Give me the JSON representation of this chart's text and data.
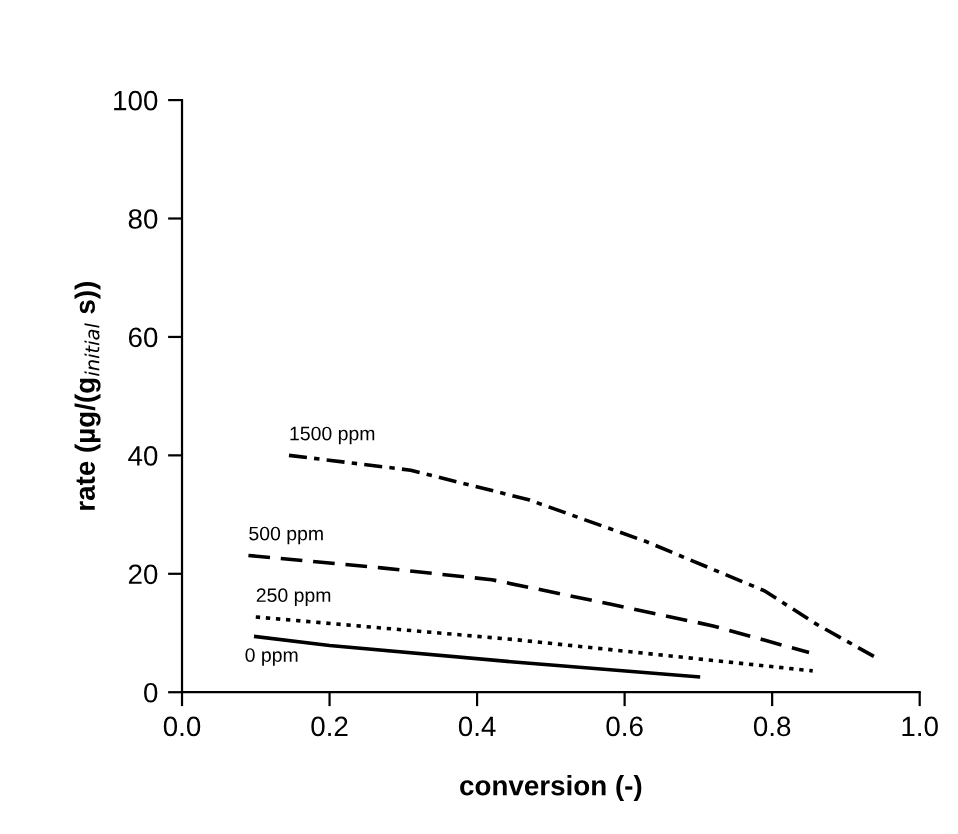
{
  "chart_data": {
    "type": "line",
    "xlabel": "conversion (-)",
    "ylabel": "rate (µg/(g$_{initial}$ s))",
    "xlim": [
      0,
      1
    ],
    "ylim": [
      0,
      100
    ],
    "xticks": [
      {
        "value": 0,
        "label": "0.0"
      },
      {
        "value": 0.2,
        "label": "0.2"
      },
      {
        "value": 0.4,
        "label": "0.4"
      },
      {
        "value": 0.6,
        "label": "0.6"
      },
      {
        "value": 0.8,
        "label": "0.8"
      },
      {
        "value": 1,
        "label": "1.0"
      }
    ],
    "yticks": [
      0,
      20,
      40,
      60,
      80,
      100
    ],
    "grid": false,
    "legend": false,
    "marker": "none",
    "series": [
      {
        "name": "0 ppm",
        "color": "#000000",
        "line_style": "solid",
        "x": [
          0.1,
          0.2,
          0.45,
          0.7
        ],
        "values": [
          9.4,
          7.9,
          5.1,
          2.6
        ]
      },
      {
        "name": "250 ppm",
        "color": "#000000",
        "line_style": "dotted",
        "x": [
          0.1,
          0.45,
          0.855
        ],
        "values": [
          12.7,
          8.9,
          3.6
        ]
      },
      {
        "name": "500 ppm",
        "color": "#000000",
        "line_style": "dashed",
        "x": [
          0.09,
          0.27,
          0.42,
          0.58,
          0.72,
          0.85
        ],
        "values": [
          23.1,
          21,
          19,
          14.9,
          11.2,
          6.7
        ]
      },
      {
        "name": "1500 ppm",
        "color": "#000000",
        "line_style": "dashdot",
        "x": [
          0.145,
          0.31,
          0.47,
          0.63,
          0.79,
          0.86,
          0.94
        ],
        "values": [
          40,
          37.5,
          32.5,
          25.4,
          17.1,
          11.5,
          5.9
        ]
      }
    ]
  }
}
